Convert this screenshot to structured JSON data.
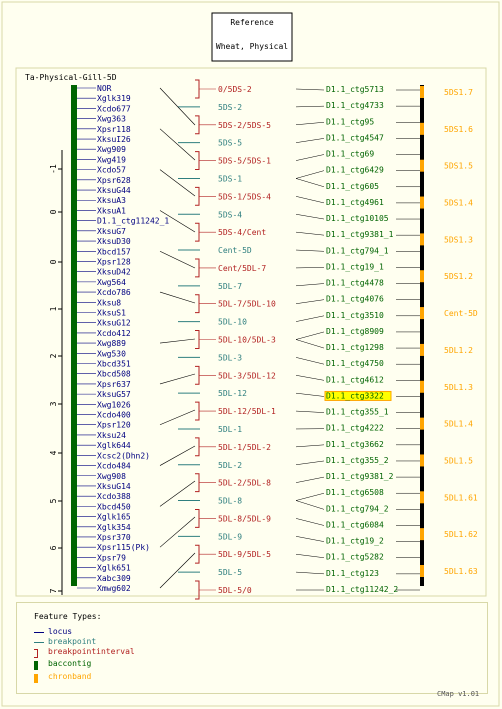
{
  "reference": {
    "title": "Reference",
    "subtitle": "Wheat, Physical"
  },
  "map_title": "Ta-Physical-Gill-5D",
  "colors": {
    "locus": "#000080",
    "breakpoint": "#2f7f7f",
    "breakpointinterval": "#b22222",
    "baccontig": "#006400",
    "chronband": "#ffa500",
    "frame": "#d8d8a8"
  },
  "scale_labels": [
    "-1",
    "0",
    "0",
    "1",
    "2",
    "3",
    "4",
    "5",
    "6",
    "7"
  ],
  "loci": [
    "NOR",
    "Xglk319",
    "Xcdo677",
    "Xwg363",
    "Xpsr118",
    "XksuI26",
    "Xwg909",
    "Xwg419",
    "Xcdo57",
    "Xpsr628",
    "XksuG44",
    "XksuA3",
    "XksuA1",
    "D1.1_ctg11242_1",
    "XksuG7",
    "XksuD30",
    "Xbcd157",
    "Xpsr128",
    "XksuD42",
    "Xwg564",
    "Xcdo786",
    "Xksu8",
    "XksuS1",
    "XksuG12",
    "Xcdo412",
    "Xwg889",
    "Xwg530",
    "Xbcd351",
    "Xbcd508",
    "Xpsr637",
    "XksuG57",
    "Xwg1026",
    "Xcdo400",
    "Xpsr120",
    "Xksu24",
    "Xglk644",
    "Xcsc2(Dhn2)",
    "Xcdo484",
    "Xwg908",
    "XksuG14",
    "Xcdo388",
    "Xbcd450",
    "Xglk165",
    "Xglk354",
    "Xpsr370",
    "Xpsr115(Pk)",
    "Xpsr79",
    "Xglk651",
    "Xabc309",
    "Xmwg602"
  ],
  "bins": [
    {
      "label": "0/5DS-2",
      "kind": "interval"
    },
    {
      "label": "5DS-2",
      "kind": "point"
    },
    {
      "label": "5DS-2/5DS-5",
      "kind": "interval"
    },
    {
      "label": "5DS-5",
      "kind": "point"
    },
    {
      "label": "5DS-5/5DS-1",
      "kind": "interval"
    },
    {
      "label": "5DS-1",
      "kind": "point"
    },
    {
      "label": "5DS-1/5DS-4",
      "kind": "interval"
    },
    {
      "label": "5DS-4",
      "kind": "point"
    },
    {
      "label": "5DS-4/Cent",
      "kind": "interval"
    },
    {
      "label": "Cent-5D",
      "kind": "point"
    },
    {
      "label": "Cent/5DL-7",
      "kind": "interval"
    },
    {
      "label": "5DL-7",
      "kind": "point"
    },
    {
      "label": "5DL-7/5DL-10",
      "kind": "interval"
    },
    {
      "label": "5DL-10",
      "kind": "point"
    },
    {
      "label": "5DL-10/5DL-3",
      "kind": "interval"
    },
    {
      "label": "5DL-3",
      "kind": "point"
    },
    {
      "label": "5DL-3/5DL-12",
      "kind": "interval"
    },
    {
      "label": "5DL-12",
      "kind": "point"
    },
    {
      "label": "5DL-12/5DL-1",
      "kind": "interval"
    },
    {
      "label": "5DL-1",
      "kind": "point"
    },
    {
      "label": "5DL-1/5DL-2",
      "kind": "interval"
    },
    {
      "label": "5DL-2",
      "kind": "point"
    },
    {
      "label": "5DL-2/5DL-8",
      "kind": "interval"
    },
    {
      "label": "5DL-8",
      "kind": "point"
    },
    {
      "label": "5DL-8/5DL-9",
      "kind": "interval"
    },
    {
      "label": "5DL-9",
      "kind": "point"
    },
    {
      "label": "5DL-9/5DL-5",
      "kind": "interval"
    },
    {
      "label": "5DL-5",
      "kind": "point"
    },
    {
      "label": "5DL-5/0",
      "kind": "interval"
    }
  ],
  "contigs": [
    {
      "label": "D1.1_ctg5713",
      "highlight": false
    },
    {
      "label": "D1.1_ctg4733",
      "highlight": false
    },
    {
      "label": "D1.1_ctg95",
      "highlight": false
    },
    {
      "label": "D1.1_ctg4547",
      "highlight": false
    },
    {
      "label": "D1.1_ctg69",
      "highlight": false
    },
    {
      "label": "D1.1_ctg6429",
      "highlight": false
    },
    {
      "label": "D1.1_ctg605",
      "highlight": false
    },
    {
      "label": "D1.1_ctg4961",
      "highlight": false
    },
    {
      "label": "D1.1_ctg10105",
      "highlight": false
    },
    {
      "label": "D1.1_ctg9381_1",
      "highlight": false
    },
    {
      "label": "D1.1_ctg794_1",
      "highlight": false
    },
    {
      "label": "D1.1_ctg19_1",
      "highlight": false
    },
    {
      "label": "D1.1_ctg4478",
      "highlight": false
    },
    {
      "label": "D1.1_ctg4076",
      "highlight": false
    },
    {
      "label": "D1.1_ctg3510",
      "highlight": false
    },
    {
      "label": "D1.1_ctg8909",
      "highlight": false
    },
    {
      "label": "D1.1_ctg1298",
      "highlight": false
    },
    {
      "label": "D1.1_ctg4750",
      "highlight": false
    },
    {
      "label": "D1.1_ctg4612",
      "highlight": false
    },
    {
      "label": "D1.1_ctg3322",
      "highlight": true
    },
    {
      "label": "D1.1_ctg355_1",
      "highlight": false
    },
    {
      "label": "D1.1_ctg4222",
      "highlight": false
    },
    {
      "label": "D1.1_ctg3662",
      "highlight": false
    },
    {
      "label": "D1.1_ctg355_2",
      "highlight": false
    },
    {
      "label": "D1.1_ctg9381_2",
      "highlight": false
    },
    {
      "label": "D1.1_ctg6508",
      "highlight": false
    },
    {
      "label": "D1.1_ctg794_2",
      "highlight": false
    },
    {
      "label": "D1.1_ctg6084",
      "highlight": false
    },
    {
      "label": "D1.1_ctg19_2",
      "highlight": false
    },
    {
      "label": "D1.1_ctg5282",
      "highlight": false
    },
    {
      "label": "D1.1_ctg123",
      "highlight": false
    },
    {
      "label": "D1.1_ctg11242_2",
      "highlight": false
    }
  ],
  "bands": [
    "5DS1.7",
    "5DS1.6",
    "5DS1.5",
    "5DS1.4",
    "5DS1.3",
    "5DS1.2",
    "Cent-5D",
    "5DL1.2",
    "5DL1.3",
    "5DL1.4",
    "5DL1.5",
    "5DL1.61",
    "5DL1.62",
    "5DL1.63"
  ],
  "legend": {
    "title": "Feature Types:",
    "items": [
      {
        "label": "locus",
        "type": "locus"
      },
      {
        "label": "breakpoint",
        "type": "breakpoint"
      },
      {
        "label": "breakpointinterval",
        "type": "breakpointinterval"
      },
      {
        "label": "baccontig",
        "type": "baccontig"
      },
      {
        "label": "chronband",
        "type": "chronband"
      }
    ]
  },
  "version": "CMap v1.01"
}
